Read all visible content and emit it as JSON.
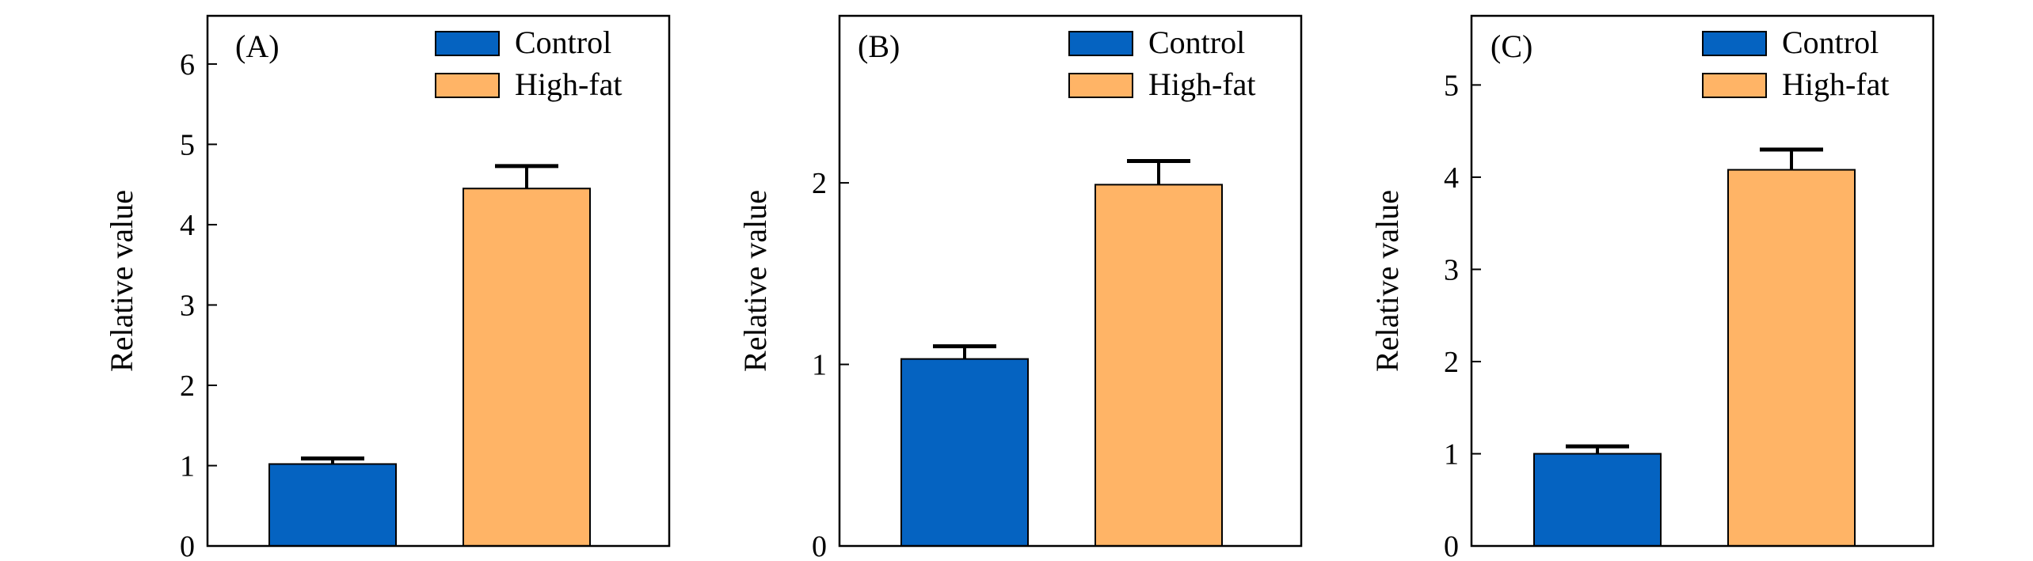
{
  "colors": {
    "control": "#0563C1",
    "high_fat": "#FFB466",
    "axis": "#000000",
    "background": "#FFFFFF"
  },
  "chart_data": [
    {
      "type": "bar",
      "panel_label": "(A)",
      "categories": [
        "Control",
        "High-fat"
      ],
      "values": [
        1.02,
        4.45
      ],
      "errors": [
        0.07,
        0.28
      ],
      "ylabel": "Relative value",
      "xlabel": "",
      "ylim": [
        0,
        6.6
      ],
      "yticks": [
        0,
        1,
        2,
        3,
        4,
        5,
        6
      ],
      "legend": [
        "Control",
        "High-fat"
      ],
      "legend_position": "top-right"
    },
    {
      "type": "bar",
      "panel_label": "(B)",
      "categories": [
        "Control",
        "High-fat"
      ],
      "values": [
        1.03,
        1.99
      ],
      "errors": [
        0.07,
        0.13
      ],
      "ylabel": "Relative value",
      "xlabel": "",
      "ylim": [
        0,
        2.92
      ],
      "yticks": [
        0,
        1,
        2
      ],
      "legend": [
        "Control",
        "High-fat"
      ],
      "legend_position": "top-right"
    },
    {
      "type": "bar",
      "panel_label": "(C)",
      "categories": [
        "Control",
        "High-fat"
      ],
      "values": [
        1.0,
        4.08
      ],
      "errors": [
        0.08,
        0.22
      ],
      "ylabel": "Relative value",
      "xlabel": "",
      "ylim": [
        0,
        5.75
      ],
      "yticks": [
        0,
        1,
        2,
        3,
        4,
        5
      ],
      "legend": [
        "Control",
        "High-fat"
      ],
      "legend_position": "top-right"
    }
  ]
}
